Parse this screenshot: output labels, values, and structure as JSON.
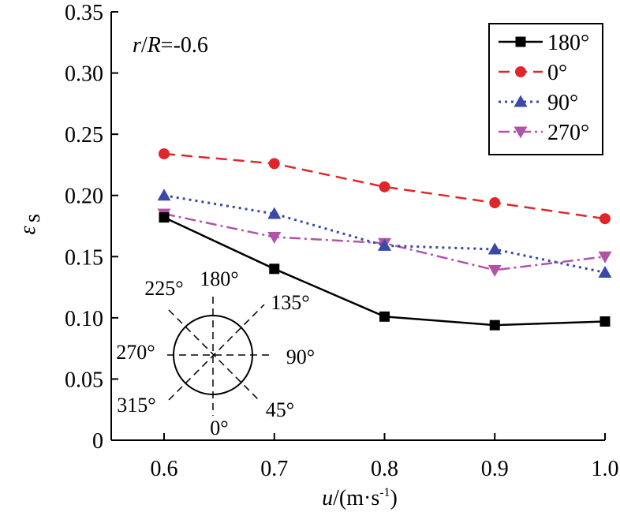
{
  "chart_data": {
    "type": "line",
    "title": "",
    "annotation": {
      "r": "r",
      "R": "R",
      "slash": "/",
      "rest": "=-0.6"
    },
    "xlabel": {
      "var": "u",
      "unit_open": "/(m·s",
      "sup": "-1",
      "unit_close": ")"
    },
    "ylabel": {
      "symbol": "ε",
      "sub": "s"
    },
    "x": [
      0.6,
      0.7,
      0.8,
      0.9,
      1.0
    ],
    "xticks": [
      "0.6",
      "0.7",
      "0.8",
      "0.9",
      "1.0"
    ],
    "xlim": [
      0.56,
      1.0
    ],
    "ylim": [
      0,
      0.35
    ],
    "yticks": [
      "0",
      "0.05",
      "0.10",
      "0.15",
      "0.20",
      "0.25",
      "0.30",
      "0.35"
    ],
    "ytick_values": [
      0,
      0.05,
      0.1,
      0.15,
      0.2,
      0.25,
      0.3,
      0.35
    ],
    "grid": false,
    "legend_position": "top-right",
    "series": [
      {
        "name": "180°",
        "values": [
          0.182,
          0.14,
          0.101,
          0.094,
          0.097
        ],
        "color": "#000000",
        "marker": "square",
        "dash": ""
      },
      {
        "name": "0°",
        "values": [
          0.234,
          0.226,
          0.207,
          0.194,
          0.181
        ],
        "color": "#e0262b",
        "marker": "circle",
        "dash": "14,8"
      },
      {
        "name": "90°",
        "values": [
          0.2,
          0.185,
          0.159,
          0.156,
          0.137
        ],
        "color": "#3a49a8",
        "marker": "triangle-up",
        "dash": "3,5"
      },
      {
        "name": "270°",
        "values": [
          0.185,
          0.166,
          0.161,
          0.139,
          0.15
        ],
        "color": "#b154a8",
        "marker": "triangle-down",
        "dash": "14,5,3,5"
      }
    ],
    "inset": {
      "labels": {
        "a180": "180°",
        "a225": "225°",
        "a135": "135°",
        "a270": "270°",
        "a90": "90°",
        "a315": "315°",
        "a45": "45°",
        "a0": "0°"
      }
    }
  }
}
